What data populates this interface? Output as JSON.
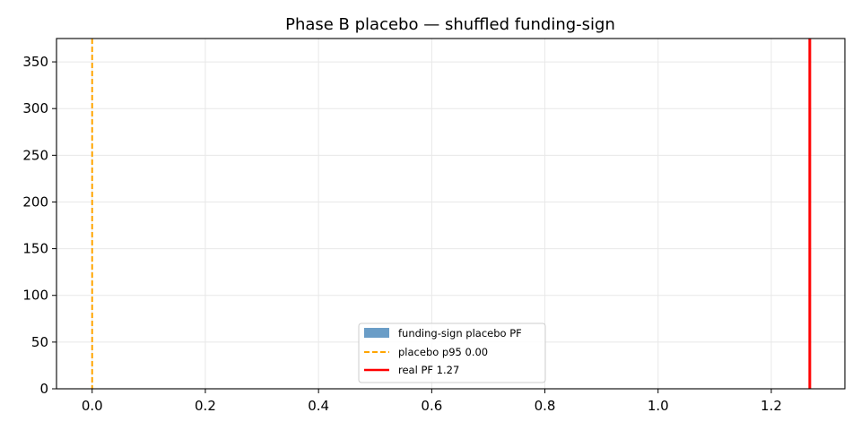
{
  "chart_data": {
    "type": "histogram",
    "title": "Phase B placebo — shuffled funding-sign",
    "xlabel": "",
    "ylabel": "",
    "xlim": [
      -0.063,
      1.33
    ],
    "ylim": [
      0,
      375
    ],
    "x_ticks": [
      0.0,
      0.2,
      0.4,
      0.6,
      0.8,
      1.0,
      1.2
    ],
    "x_tick_labels": [
      "0.0",
      "0.2",
      "0.4",
      "0.6",
      "0.8",
      "1.0",
      "1.2"
    ],
    "y_ticks": [
      0,
      50,
      100,
      150,
      200,
      250,
      300,
      350
    ],
    "y_tick_labels": [
      "0",
      "50",
      "100",
      "150",
      "200",
      "250",
      "300",
      "350"
    ],
    "grid": true,
    "legend_position": "lower-center",
    "series": [
      {
        "name": "funding-sign placebo PF",
        "kind": "histogram",
        "color": "#6a9dc7",
        "bins": []
      },
      {
        "name": "placebo p95 0.00",
        "kind": "vline",
        "x": 0.0,
        "color": "#ffa500",
        "style": "dashed"
      },
      {
        "name": "real PF 1.27",
        "kind": "vline",
        "x": 1.268,
        "color": "#ff0000",
        "style": "solid"
      }
    ]
  }
}
